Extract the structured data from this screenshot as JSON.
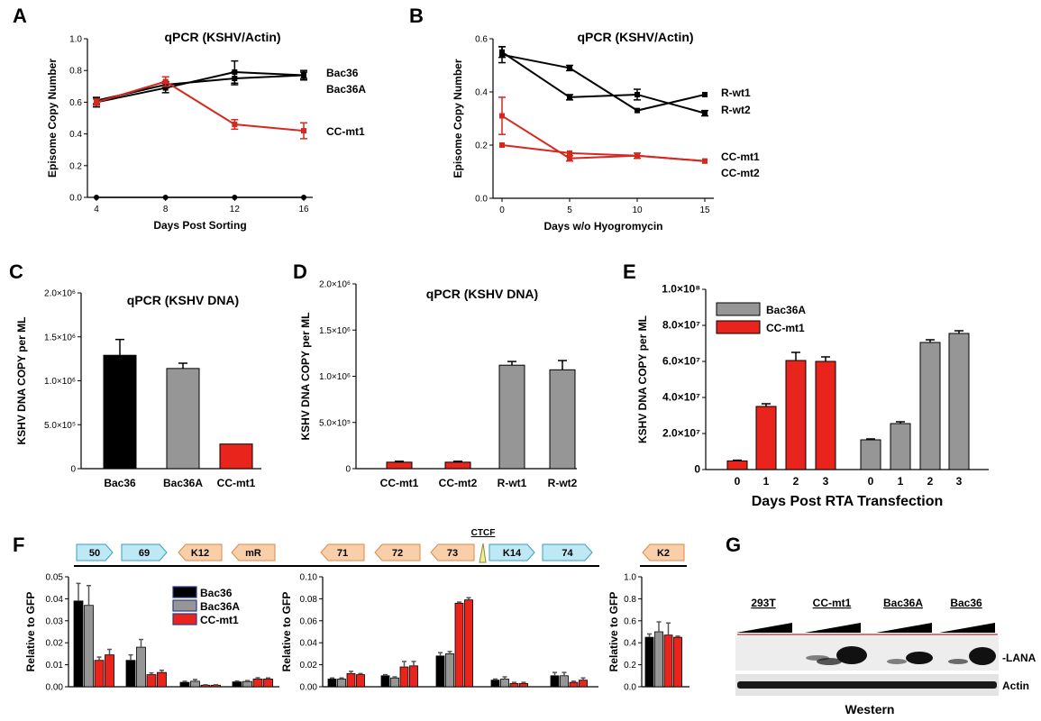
{
  "panel_letters": {
    "a": "A",
    "b": "B",
    "c": "C",
    "d": "D",
    "e": "E",
    "f": "F",
    "g": "G"
  },
  "colors": {
    "black": "#000000",
    "gray": "#969696",
    "red": "#e8241c",
    "red_line": "#d6281e",
    "gene_blue": "#bfe8f5",
    "gene_orange": "#f9cfa9"
  },
  "chart_data": [
    {
      "id": "A",
      "type": "line",
      "title": "qPCR (KSHV/Actin)",
      "xlabel": "Days Post Sorting",
      "ylabel": "Episome Copy Number",
      "x": [
        4,
        8,
        12,
        16
      ],
      "xticks": [
        "4",
        "8",
        "12",
        "16"
      ],
      "ylim": [
        0,
        1.0
      ],
      "yticks": [
        "0.0",
        "0.2",
        "0.4",
        "0.6",
        "0.8",
        "1.0"
      ],
      "series": [
        {
          "name": "Bac36",
          "color": "black",
          "values": [
            0.6,
            0.69,
            0.79,
            0.77
          ],
          "err": [
            0.03,
            0.03,
            0.07,
            0.03
          ]
        },
        {
          "name": "Bac36A",
          "color": "black",
          "values": [
            0.61,
            0.71,
            0.75,
            0.77
          ],
          "err": [
            0.02,
            0.02,
            0.04,
            0.02
          ]
        },
        {
          "name": "CC-mt1",
          "color": "red",
          "values": [
            0.6,
            0.73,
            0.46,
            0.42
          ],
          "err": [
            0.02,
            0.03,
            0.03,
            0.05
          ]
        }
      ],
      "zero_series": [
        0,
        0,
        0,
        0
      ]
    },
    {
      "id": "B",
      "type": "line",
      "title": "qPCR (KSHV/Actin)",
      "xlabel": "Days w/o Hyogromycin",
      "ylabel": "Episome Copy Number",
      "x": [
        0,
        5,
        10,
        15
      ],
      "xticks": [
        "0",
        "5",
        "10",
        "15"
      ],
      "ylim": [
        0,
        0.6
      ],
      "yticks": [
        "0.0",
        "0.2",
        "0.4",
        "0.6"
      ],
      "series": [
        {
          "name": "R-wt1",
          "color": "black",
          "values": [
            0.54,
            0.49,
            0.33,
            0.39
          ],
          "err": [
            0.03,
            0.01,
            0.0,
            0.0
          ]
        },
        {
          "name": "R-wt2",
          "color": "black",
          "values": [
            0.55,
            0.38,
            0.39,
            0.32
          ],
          "err": [
            0.02,
            0.01,
            0.02,
            0.01
          ]
        },
        {
          "name": "CC-mt1",
          "color": "red",
          "values": [
            0.31,
            0.15,
            0.16,
            0.14
          ],
          "err": [
            0.07,
            0.01,
            0.01,
            0.0
          ]
        },
        {
          "name": "CC-mt2",
          "color": "red",
          "values": [
            0.2,
            0.17,
            0.16,
            0.14
          ],
          "err": [
            0.0,
            0.0,
            0.0,
            0.0
          ]
        }
      ]
    },
    {
      "id": "C",
      "type": "bar",
      "title": "qPCR (KSHV DNA)",
      "ylabel": "KSHV DNA COPY per ML",
      "categories": [
        "Bac36",
        "Bac36A",
        "CC-mt1"
      ],
      "values": [
        1290000,
        1140000,
        280000
      ],
      "err": [
        180000,
        60000,
        0
      ],
      "colors": [
        "black",
        "gray",
        "red"
      ],
      "ylim": [
        0,
        2000000
      ],
      "yticks": [
        "0",
        "5.0×10⁵",
        "1.0×10⁶",
        "1.5×10⁶",
        "2.0×10⁶"
      ]
    },
    {
      "id": "D",
      "type": "bar",
      "title": "qPCR (KSHV DNA)",
      "ylabel": "KSHV DNA COPY per ML",
      "categories": [
        "CC-mt1",
        "CC-mt2",
        "R-wt1",
        "R-wt2"
      ],
      "values": [
        70000,
        70000,
        1120000,
        1070000
      ],
      "err": [
        10000,
        10000,
        40000,
        100000
      ],
      "colors": [
        "red",
        "red",
        "gray",
        "gray"
      ],
      "ylim": [
        0,
        2000000
      ],
      "yticks": [
        "0",
        "5.0×10⁵",
        "1.0×10⁶",
        "1.5×10⁶",
        "2.0×10⁶"
      ]
    },
    {
      "id": "E",
      "type": "bar",
      "xlabel": "Days Post RTA Transfection",
      "ylabel": "KSHV DNA COPY per ML",
      "categories": [
        "0",
        "1",
        "2",
        "3",
        "0",
        "1",
        "2",
        "3"
      ],
      "values": [
        4800000,
        35000000,
        60500000,
        60000000,
        16500000,
        25500000,
        70500000,
        75500000
      ],
      "err": [
        400000,
        1500000,
        4500000,
        2500000,
        500000,
        1000000,
        1500000,
        1500000
      ],
      "colors": [
        "red",
        "red",
        "red",
        "red",
        "gray",
        "gray",
        "gray",
        "gray"
      ],
      "ylim": [
        0,
        100000000
      ],
      "yticks": [
        "0",
        "2.0×10⁷",
        "4.0×10⁷",
        "6.0×10⁷",
        "8.0×10⁷",
        "1.0×10⁸"
      ],
      "legend": [
        {
          "name": "Bac36A",
          "color": "gray"
        },
        {
          "name": "CC-mt1",
          "color": "red"
        }
      ]
    },
    {
      "id": "F1",
      "type": "bar",
      "ylabel": "Relative to GFP",
      "ylim": [
        0,
        0.05
      ],
      "yticks": [
        "0.00",
        "0.01",
        "0.02",
        "0.03",
        "0.04",
        "0.05"
      ],
      "groups": [
        {
          "values": [
            0.039,
            0.037,
            0.012,
            0.0145
          ],
          "err": [
            0.008,
            0.009,
            0.0015,
            0.0025
          ]
        },
        {
          "values": [
            0.012,
            0.018,
            0.0055,
            0.0065
          ],
          "err": [
            0.0025,
            0.0035,
            0.0008,
            0.001
          ]
        },
        {
          "values": [
            0.002,
            0.0025,
            0.0007,
            0.0007
          ],
          "err": [
            0.0005,
            0.0008,
            0.0002,
            0.0002
          ]
        },
        {
          "values": [
            0.0022,
            0.0024,
            0.0035,
            0.0035
          ],
          "err": [
            0.0004,
            0.0004,
            0.0006,
            0.0005
          ]
        }
      ],
      "legend": [
        {
          "name": "Bac36",
          "color": "black"
        },
        {
          "name": "Bac36A",
          "color": "gray"
        },
        {
          "name": "CC-mt1",
          "color": "red"
        }
      ]
    },
    {
      "id": "F2",
      "type": "bar",
      "ylabel": "Relative to GFP",
      "ylim": [
        0,
        0.1
      ],
      "yticks": [
        "0.00",
        "0.02",
        "0.04",
        "0.06",
        "0.08",
        "0.10"
      ],
      "groups": [
        {
          "values": [
            0.007,
            0.007,
            0.012,
            0.011
          ],
          "err": [
            0.001,
            0.001,
            0.002,
            0.001
          ]
        },
        {
          "values": [
            0.01,
            0.008,
            0.018,
            0.019
          ],
          "err": [
            0.001,
            0.001,
            0.005,
            0.004
          ]
        },
        {
          "values": [
            0.028,
            0.03,
            0.076,
            0.079
          ],
          "err": [
            0.003,
            0.002,
            0.001,
            0.002
          ]
        },
        {
          "values": [
            0.006,
            0.007,
            0.003,
            0.003
          ],
          "err": [
            0.001,
            0.002,
            0.001,
            0.001
          ]
        },
        {
          "values": [
            0.01,
            0.01,
            0.004,
            0.006
          ],
          "err": [
            0.003,
            0.003,
            0.001,
            0.002
          ]
        }
      ]
    },
    {
      "id": "F3",
      "type": "bar",
      "ylabel": "Relative to GFP",
      "ylim": [
        0,
        1.0
      ],
      "yticks": [
        "0.0",
        "0.2",
        "0.4",
        "0.6",
        "0.8",
        "1.0"
      ],
      "groups": [
        {
          "values": [
            0.45,
            0.5,
            0.47,
            0.45
          ],
          "err": [
            0.03,
            0.09,
            0.11,
            0.01
          ]
        }
      ]
    }
  ],
  "gene_map": {
    "genes": [
      "50",
      "69",
      "K12",
      "mR",
      "71",
      "72",
      "73",
      "K14",
      "74",
      "K2"
    ],
    "ctcf": "CTCF"
  },
  "western": {
    "samples": [
      "293T",
      "CC-mt1",
      "Bac36A",
      "Bac36"
    ],
    "bands": [
      "LANA",
      "Actin"
    ],
    "label": "Western"
  }
}
